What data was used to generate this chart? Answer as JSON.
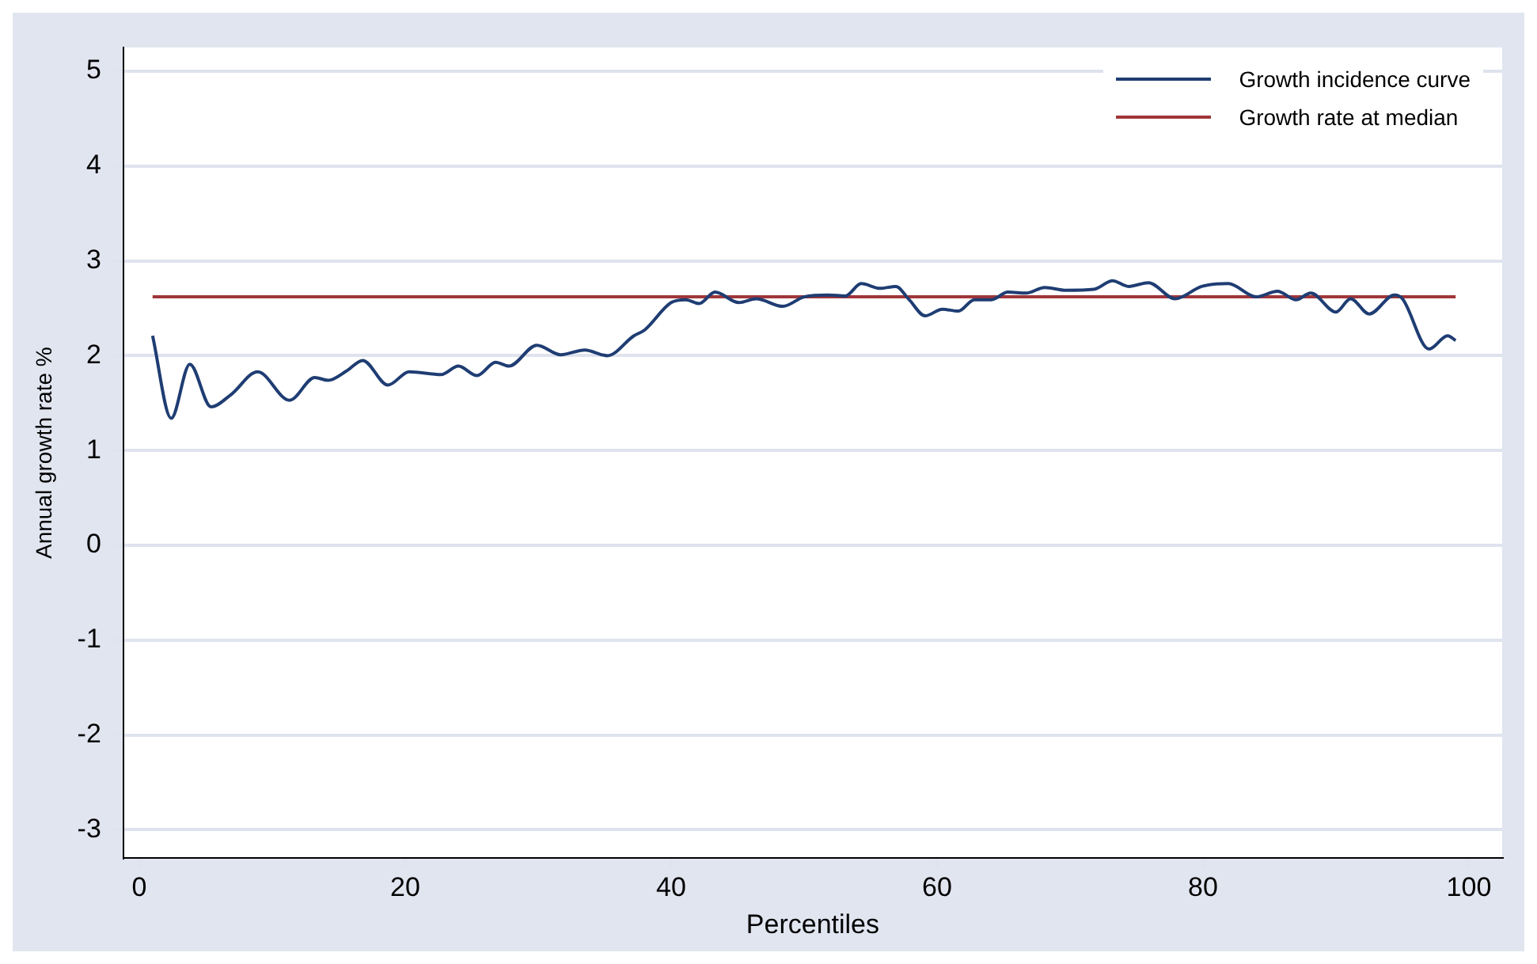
{
  "chart_data": {
    "type": "line",
    "xlabel": "Percentiles",
    "ylabel": "Annual growth rate %",
    "xlim": [
      -1.2,
      102.5
    ],
    "xticks": [
      0,
      20,
      40,
      60,
      80,
      100
    ],
    "ylim": [
      -3.3,
      5.25
    ],
    "yticks": [
      -3,
      -2,
      -1,
      0,
      1,
      2,
      3,
      4,
      5
    ],
    "grid": "y",
    "legend": "top right",
    "marker": "none",
    "line_style": "solid",
    "series": [
      {
        "name": "Growth incidence curve",
        "color": "#1f3d73",
        "x": [
          1,
          2.4,
          3.8,
          5.4,
          6.9,
          8.9,
          11.3,
          13.2,
          14.2,
          15.6,
          16.8,
          18.7,
          20.3,
          22.7,
          24,
          25.4,
          26.8,
          27.8,
          29.9,
          31.7,
          33.5,
          35.2,
          37.2,
          38,
          40,
          41.1,
          42.1,
          43.3,
          45.1,
          46.4,
          48.4,
          50,
          51.8,
          53.1,
          54.3,
          55.7,
          56.9,
          57.9,
          59.1,
          60.4,
          61.6,
          62.8,
          64.1,
          65.3,
          66.7,
          68.1,
          69.7,
          71.8,
          73.2,
          74.4,
          75.9,
          77.9,
          79.9,
          81.9,
          84,
          85.6,
          87,
          88.1,
          90,
          91.1,
          92.5,
          94.4,
          95,
          97,
          98.4,
          99
        ],
        "values": [
          2.21,
          1.34,
          1.91,
          1.46,
          1.59,
          1.83,
          1.53,
          1.77,
          1.74,
          1.84,
          1.95,
          1.69,
          1.83,
          1.8,
          1.89,
          1.79,
          1.93,
          1.89,
          2.11,
          2.01,
          2.06,
          2,
          2.21,
          2.27,
          2.56,
          2.59,
          2.55,
          2.67,
          2.56,
          2.6,
          2.52,
          2.62,
          2.64,
          2.63,
          2.76,
          2.71,
          2.73,
          2.59,
          2.42,
          2.49,
          2.47,
          2.59,
          2.59,
          2.67,
          2.66,
          2.72,
          2.69,
          2.7,
          2.79,
          2.73,
          2.77,
          2.6,
          2.73,
          2.76,
          2.62,
          2.68,
          2.59,
          2.66,
          2.46,
          2.6,
          2.44,
          2.64,
          2.6,
          2.07,
          2.21,
          2.16
        ]
      },
      {
        "name": "Growth rate at median",
        "color": "#a0363a",
        "x": [
          1,
          99
        ],
        "values": [
          2.62,
          2.62
        ]
      }
    ]
  }
}
